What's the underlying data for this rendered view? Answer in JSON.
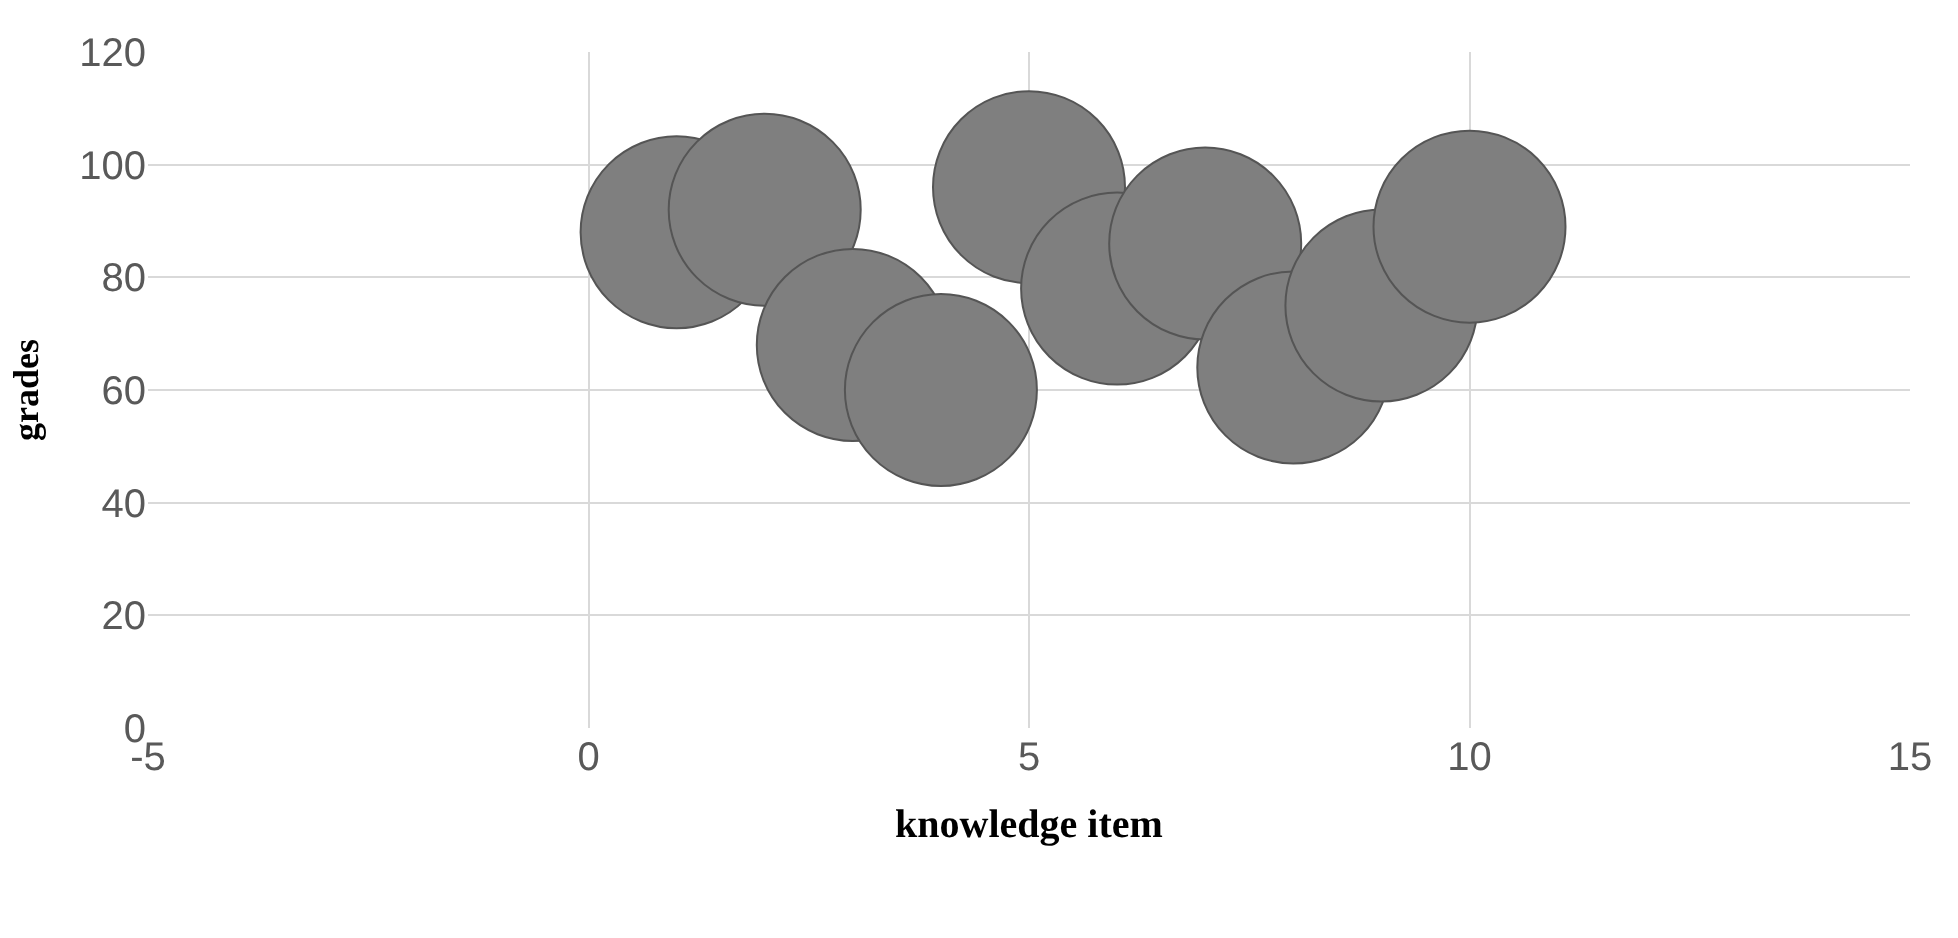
{
  "chart_data": {
    "type": "bubble",
    "xlabel": "knowledge item",
    "ylabel": "grades",
    "x": [
      1,
      2,
      3,
      4,
      5,
      6,
      7,
      8,
      9,
      10
    ],
    "values": [
      88,
      92,
      68,
      60,
      96,
      78,
      86,
      64,
      75,
      89
    ],
    "sizes": [
      1,
      1,
      1,
      1,
      1,
      1,
      1,
      1,
      1,
      1
    ],
    "color": "#7f7f7f",
    "xlim": [
      -5,
      15
    ],
    "xticks": [
      -5,
      0,
      5,
      10,
      15
    ],
    "ylim": [
      0,
      120
    ],
    "yticks": [
      0,
      20,
      40,
      60,
      80,
      100,
      120
    ],
    "grid": true,
    "legend": false
  }
}
